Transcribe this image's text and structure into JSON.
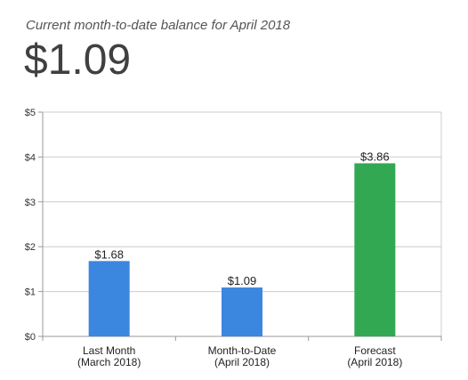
{
  "header": {
    "subtitle": "Current month-to-date balance for April 2018",
    "balance": "$1.09"
  },
  "chart_data": {
    "type": "bar",
    "categories": [
      [
        "Last Month",
        "(March 2018)"
      ],
      [
        "Month-to-Date",
        "(April 2018)"
      ],
      [
        "Forecast",
        "(April 2018)"
      ]
    ],
    "values": [
      1.68,
      1.09,
      3.86
    ],
    "data_labels": [
      "$1.68",
      "$1.09",
      "$3.86"
    ],
    "colors": [
      "#3b87e0",
      "#3b87e0",
      "#33a853"
    ],
    "ylim": [
      0,
      5
    ],
    "yticks": [
      0,
      1,
      2,
      3,
      4,
      5
    ],
    "ytick_labels": [
      "$0",
      "$1",
      "$2",
      "$3",
      "$4",
      "$5"
    ],
    "grid": true,
    "legend": "none",
    "title": "",
    "xlabel": "",
    "ylabel": ""
  }
}
